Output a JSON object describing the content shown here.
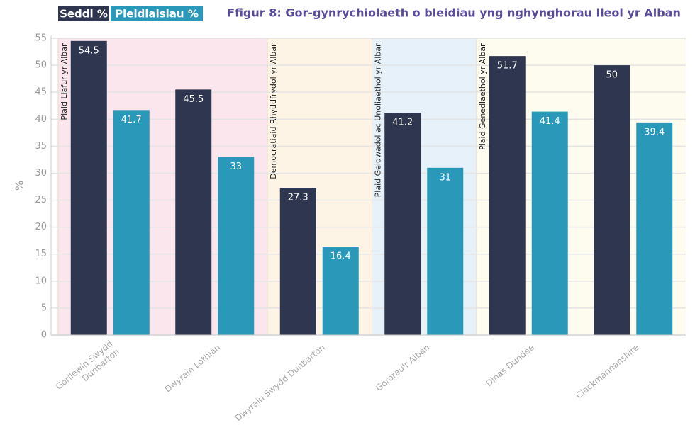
{
  "chart_data": {
    "type": "bar",
    "title": "Ffigur 8: Gor-gynrychiolaeth o bleidiau yng nghynghorau lleol yr Alban",
    "y_label": "%",
    "categories": [
      "Gorllewin Swydd\nDunbarton",
      "Dwyrain Lothian",
      "Dwyrain Swydd Dunbarton",
      "Gororau'r Alban",
      "Dinas Dundee",
      "Clackmannanshire"
    ],
    "series": [
      {
        "name": "Seddi %",
        "color": "#2e3650",
        "values": [
          54.5,
          45.5,
          27.3,
          41.2,
          51.7,
          50
        ]
      },
      {
        "name": "Pleidlaisiau %",
        "color": "#2a98b8",
        "values": [
          41.7,
          33,
          16.4,
          31,
          41.4,
          39.4
        ]
      }
    ],
    "bands": [
      {
        "label": "Plaid Llafur yr Alban",
        "color": "#fce6ed",
        "categories": [
          "Gorllewin Swydd\nDunbarton",
          "Dwyrain Lothian"
        ]
      },
      {
        "label": "Democratiaid Rhyddfrydol yr Alban",
        "color": "#fdf4e6",
        "categories": [
          "Dwyrain Swydd Dunbarton"
        ]
      },
      {
        "label": "Plaid Geidwadol ac Unoliaethol yr Alban",
        "color": "#e6f1fa",
        "categories": [
          "Gororau'r Alban"
        ]
      },
      {
        "label": "Plaid Genedlaethol yr Alban",
        "color": "#fdfcef",
        "categories": [
          "Dinas Dundee",
          "Clackmannanshire"
        ]
      }
    ],
    "ylim": [
      0,
      55
    ],
    "yticks": [
      0,
      5,
      10,
      15,
      20,
      25,
      30,
      35,
      40,
      45,
      50,
      55
    ],
    "grid": true
  }
}
